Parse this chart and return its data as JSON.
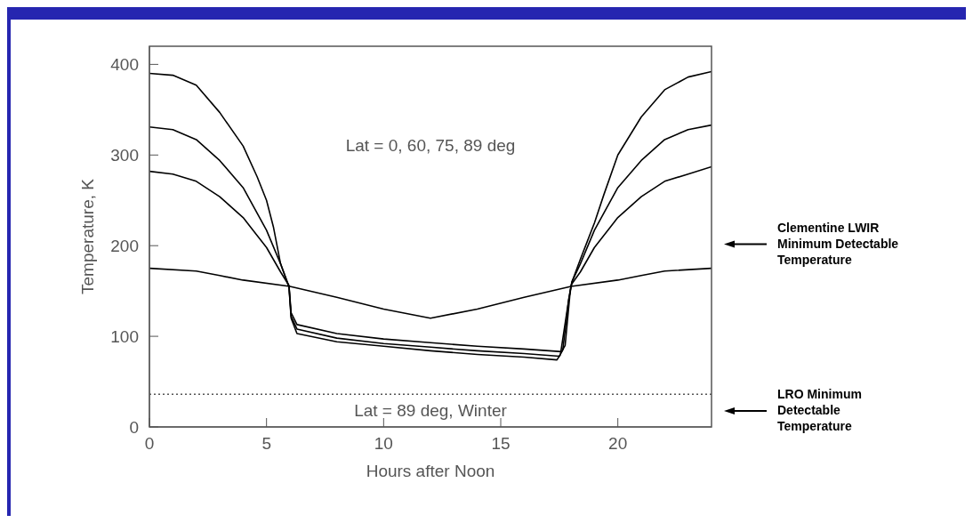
{
  "chart_data": {
    "type": "line",
    "xlabel": "Hours after Noon",
    "ylabel": "Temperature, K",
    "xlim": [
      0,
      24
    ],
    "xticks": [
      0,
      5,
      10,
      15,
      20
    ],
    "ylim": [
      0,
      420
    ],
    "yticks": [
      0,
      100,
      200,
      300,
      400
    ],
    "series": [
      {
        "color": "#000000",
        "x": [
          0,
          1,
          2,
          3,
          4,
          4.6,
          5,
          5.3,
          5.6,
          5.96,
          6.05,
          6.3,
          8,
          10,
          12,
          14,
          16,
          17.4,
          17.55,
          17.9,
          18,
          18.04,
          18.4,
          18.7,
          19,
          19.4,
          20,
          21,
          22,
          23,
          24
        ],
        "values": [
          390,
          388,
          377,
          347,
          310,
          276,
          250,
          220,
          180,
          154,
          120,
          103,
          94,
          89,
          84,
          80,
          77,
          74,
          80,
          140,
          155,
          160,
          185,
          205,
          225,
          256,
          300,
          342,
          372,
          386,
          392
        ]
      },
      {
        "color": "#000000",
        "x": [
          0,
          1,
          2,
          3,
          4,
          5,
          5.6,
          5.96,
          6.05,
          6.3,
          8,
          10,
          12,
          14,
          16,
          17.5,
          17.65,
          17.9,
          18,
          18.04,
          18.4,
          19,
          20,
          21,
          22,
          23,
          24
        ],
        "values": [
          331,
          328,
          317,
          294,
          264,
          217,
          180,
          155,
          122,
          108,
          98,
          92,
          88,
          84,
          81,
          78,
          85,
          140,
          155,
          160,
          180,
          217,
          264,
          294,
          317,
          328,
          333
        ]
      },
      {
        "color": "#000000",
        "x": [
          0,
          1,
          2,
          3,
          4,
          5,
          5.6,
          5.96,
          6.05,
          6.3,
          8,
          10,
          12,
          14,
          16,
          17.6,
          17.75,
          17.95,
          18,
          18.04,
          18.4,
          19,
          20,
          21,
          22,
          23,
          24
        ],
        "values": [
          282,
          279,
          271,
          254,
          231,
          198,
          171,
          156,
          126,
          113,
          103,
          97,
          93,
          89,
          86,
          83,
          90,
          145,
          155,
          158,
          171,
          198,
          231,
          254,
          271,
          279,
          287
        ]
      },
      {
        "color": "#000000",
        "x": [
          0,
          2,
          3,
          4,
          6,
          8,
          10,
          12,
          14,
          16,
          18,
          20,
          21,
          22,
          24
        ],
        "values": [
          175,
          172,
          167,
          162,
          155,
          143,
          130,
          120,
          130,
          143,
          155,
          162,
          167,
          172,
          175
        ]
      }
    ],
    "ref_lines": [
      {
        "axis": "y",
        "value": 36,
        "color": "#555555",
        "line_style": "dotted"
      }
    ],
    "annotations": [
      "Lat = 0, 60, 75, 89 deg",
      "Lat = 89 deg, Winter",
      "Clementine LWIR Minimum Detectable Temperature",
      "LRO Minimum Detectable Temperature"
    ]
  }
}
